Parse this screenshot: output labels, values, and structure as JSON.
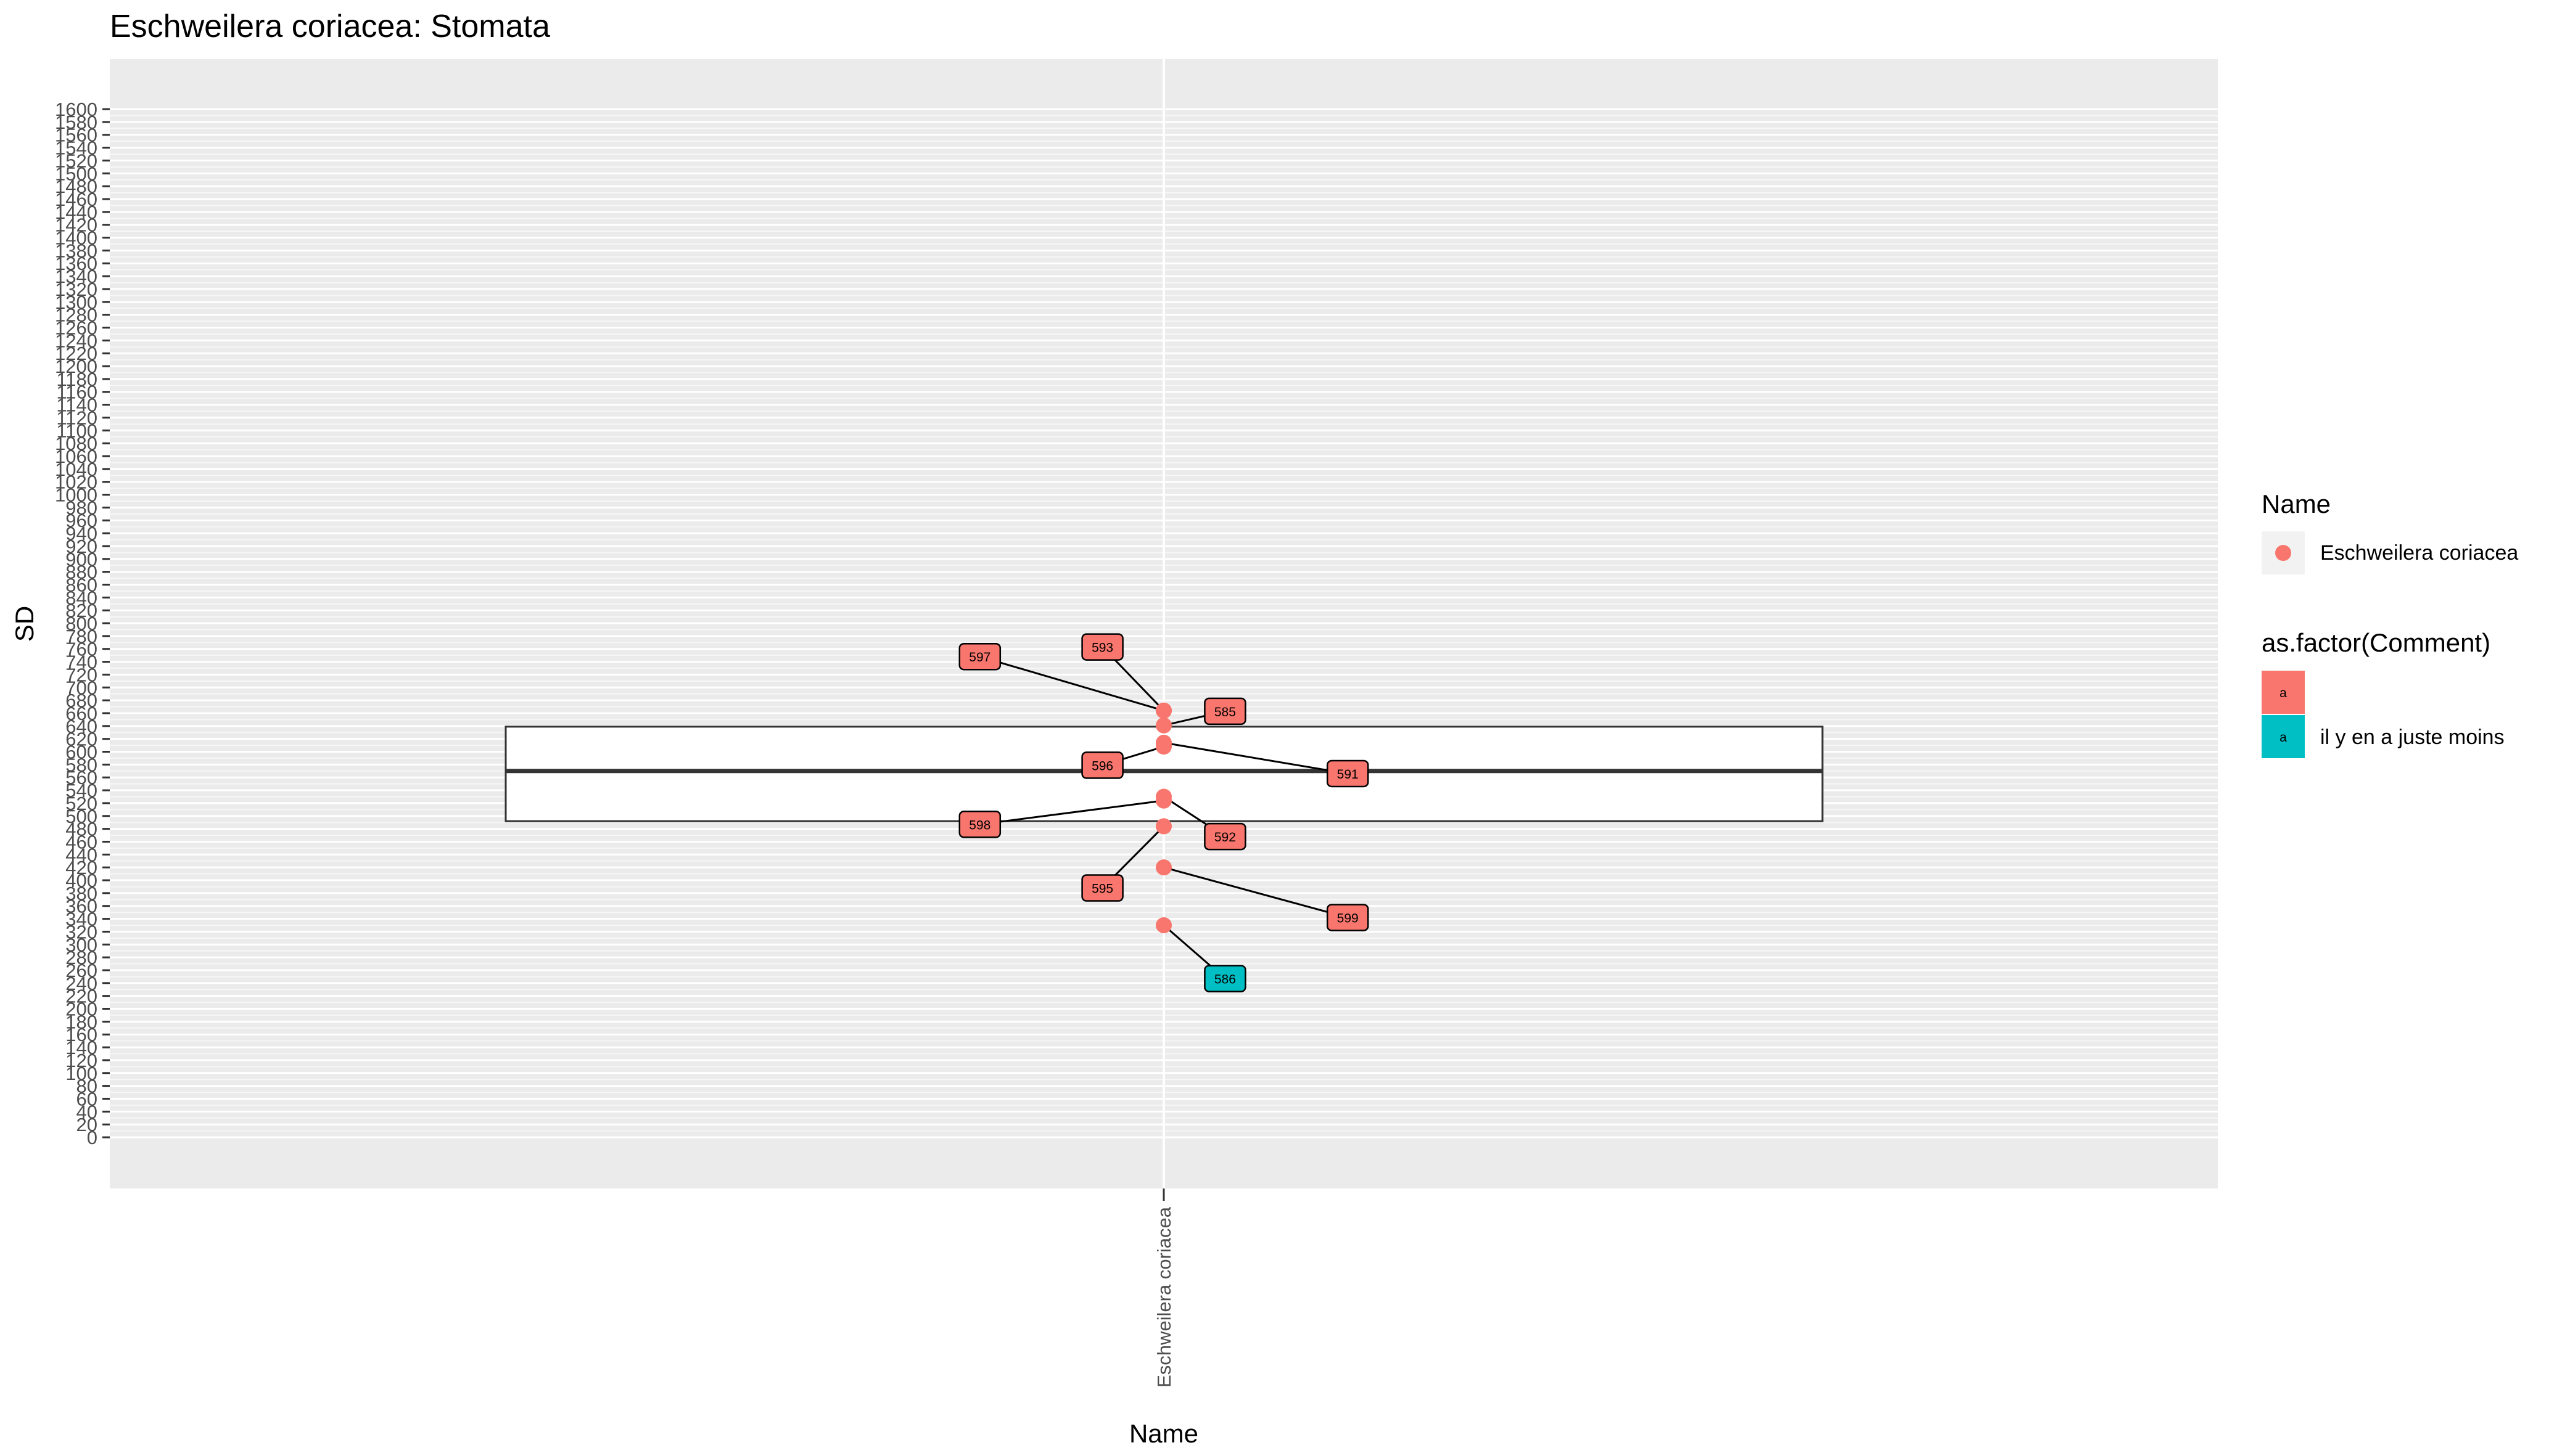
{
  "chart_data": {
    "type": "box",
    "title": "Eschweilera coriacea: Stomata",
    "xlabel": "Name",
    "ylabel": "SD",
    "categories": [
      "Eschweilera coriacea"
    ],
    "ylim": [
      0,
      1600
    ],
    "y_ticks": [
      0,
      20,
      40,
      60,
      80,
      100,
      120,
      140,
      160,
      180,
      200,
      220,
      240,
      260,
      280,
      300,
      320,
      340,
      360,
      380,
      400,
      420,
      440,
      460,
      480,
      500,
      520,
      540,
      560,
      580,
      600,
      620,
      640,
      660,
      680,
      700,
      720,
      740,
      760,
      780,
      800,
      820,
      840,
      860,
      880,
      900,
      920,
      940,
      960,
      980,
      1000,
      1020,
      1040,
      1060,
      1080,
      1100,
      1120,
      1140,
      1160,
      1180,
      1200,
      1220,
      1240,
      1260,
      1280,
      1300,
      1320,
      1340,
      1360,
      1380,
      1400,
      1420,
      1440,
      1460,
      1480,
      1500,
      1520,
      1540,
      1560,
      1580,
      1600
    ],
    "grid": true,
    "box": {
      "q1": 492,
      "median": 570,
      "q3": 639
    },
    "series_colors": {
      "a": "#F8766D",
      "il y en a juste moins": "#00BFC4"
    },
    "points": [
      {
        "id": "585",
        "y": 641,
        "comment": "a",
        "label_y": 663,
        "label_offset": 1
      },
      {
        "id": "597",
        "y": 664,
        "comment": "a",
        "label_y": 748,
        "label_offset": -3
      },
      {
        "id": "593",
        "y": 664,
        "comment": "a",
        "label_y": 763,
        "label_offset": -1
      },
      {
        "id": "591",
        "y": 614,
        "comment": "a",
        "label_y": 566,
        "label_offset": 3
      },
      {
        "id": "596",
        "y": 608,
        "comment": "a",
        "label_y": 579,
        "label_offset": -1
      },
      {
        "id": "592",
        "y": 530,
        "comment": "a",
        "label_y": 468,
        "label_offset": 1
      },
      {
        "id": "598",
        "y": 524,
        "comment": "a",
        "label_y": 487,
        "label_offset": -3
      },
      {
        "id": "595",
        "y": 484,
        "comment": "a",
        "label_y": 388,
        "label_offset": -1
      },
      {
        "id": "599",
        "y": 420,
        "comment": "a",
        "label_y": 342,
        "label_offset": 3
      },
      {
        "id": "586",
        "y": 330,
        "comment": "il y en a juste moins",
        "label_y": 247,
        "label_offset": 1
      }
    ]
  },
  "legend": {
    "name_title": "Name",
    "name_entries": [
      {
        "label": "Eschweilera coriacea",
        "color": "#F8766D"
      }
    ],
    "comment_title": "as.factor(Comment)",
    "comment_entries": [
      {
        "key": "a",
        "label": "",
        "color": "#F8766D"
      },
      {
        "key": "a",
        "label": "il y en a juste moins",
        "color": "#00BFC4"
      }
    ]
  }
}
